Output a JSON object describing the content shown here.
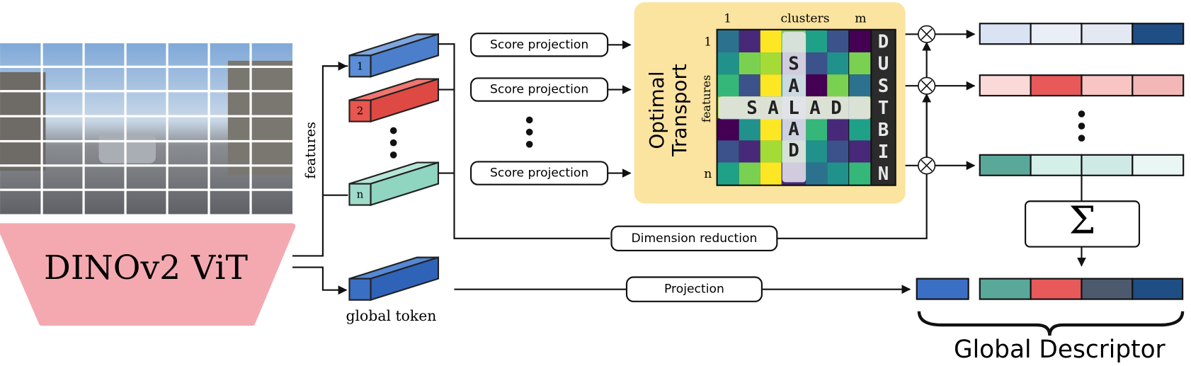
{
  "backbone": "DINOv2 ViT",
  "features_label": "features",
  "tokens": [
    "1",
    "2",
    "n"
  ],
  "global_token": "global token",
  "score_projection": [
    "Score projection",
    "Score projection",
    "Score projection"
  ],
  "dimension_reduction": "Dimension reduction",
  "projection": "Projection",
  "optimal_transport": {
    "title_lines": [
      "Optimal",
      "Transport"
    ],
    "col_start": "1",
    "col_label": "clusters",
    "col_end": "m",
    "row_start": "1",
    "row_label": "features",
    "row_end": "n",
    "word_horizontal": [
      "S",
      "A",
      "L",
      "A",
      "D"
    ],
    "word_vertical": [
      "S",
      "A",
      "L",
      "A",
      "D"
    ],
    "dustbin": [
      "D",
      "U",
      "S",
      "T",
      "B",
      "I",
      "N"
    ]
  },
  "sum": "Σ",
  "output": "Global Descriptor"
}
